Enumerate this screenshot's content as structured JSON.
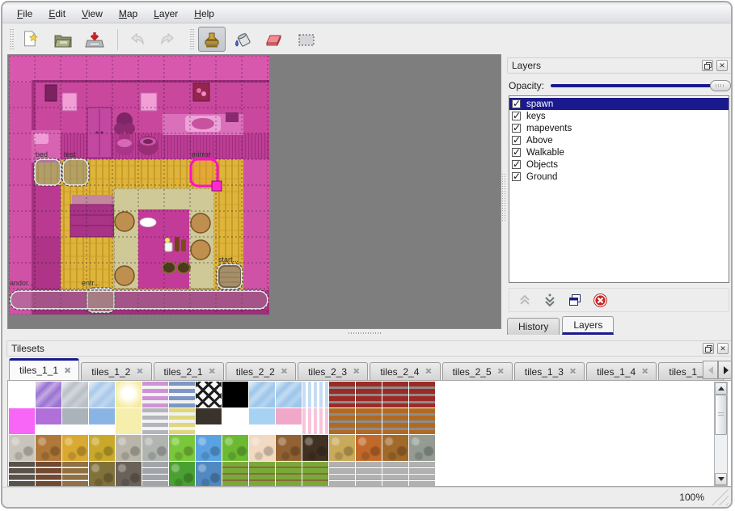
{
  "colors": {
    "accent": "#1a1a8e",
    "window_bg": "#ededed",
    "map_view_bg": "#7e7e7e",
    "map_base_magenta": "#d052a6",
    "map_floor_yellow": "#dfb43a",
    "map_carpet_tan": "#cfc998",
    "map_rug_magenta": "#c33b98",
    "selection_pink": "#ff10c8"
  },
  "menu": {
    "items": [
      "File",
      "Edit",
      "View",
      "Map",
      "Layer",
      "Help"
    ]
  },
  "toolbar": {
    "buttons": [
      {
        "name": "new-file",
        "disabled": false
      },
      {
        "name": "open-file",
        "disabled": false
      },
      {
        "name": "save-file",
        "disabled": false
      },
      {
        "name": "undo",
        "disabled": true
      },
      {
        "name": "redo",
        "disabled": true
      },
      {
        "name": "stamp-brush",
        "active": true
      },
      {
        "name": "bucket-fill",
        "active": false
      },
      {
        "name": "eraser",
        "active": false
      },
      {
        "name": "rectangular-select",
        "active": false
      }
    ]
  },
  "map": {
    "grid_size": 32,
    "objects": [
      {
        "label": "bed"
      },
      {
        "label": "test"
      },
      {
        "label": "mirror",
        "selected": true
      },
      {
        "label": "start..."
      },
      {
        "label": "entr..."
      },
      {
        "label": "andor..."
      }
    ]
  },
  "layers_panel": {
    "title": "Layers",
    "opacity_label": "Opacity:",
    "opacity_percent": 100,
    "layers": [
      {
        "name": "spawn",
        "visible": true,
        "selected": true
      },
      {
        "name": "keys",
        "visible": true,
        "selected": false
      },
      {
        "name": "mapevents",
        "visible": true,
        "selected": false
      },
      {
        "name": "Above",
        "visible": true,
        "selected": false
      },
      {
        "name": "Walkable",
        "visible": true,
        "selected": false
      },
      {
        "name": "Objects",
        "visible": true,
        "selected": false
      },
      {
        "name": "Ground",
        "visible": true,
        "selected": false
      }
    ],
    "tabs": [
      {
        "label": "History",
        "active": false
      },
      {
        "label": "Layers",
        "active": true
      }
    ]
  },
  "tilesets_panel": {
    "title": "Tilesets",
    "tabs": [
      {
        "label": "tiles_1_1",
        "active": true
      },
      {
        "label": "tiles_1_2",
        "active": false
      },
      {
        "label": "tiles_2_1",
        "active": false
      },
      {
        "label": "tiles_2_2",
        "active": false
      },
      {
        "label": "tiles_2_3",
        "active": false
      },
      {
        "label": "tiles_2_4",
        "active": false
      },
      {
        "label": "tiles_2_5",
        "active": false
      },
      {
        "label": "tiles_1_3",
        "active": false
      },
      {
        "label": "tiles_1_4",
        "active": false
      },
      {
        "label": "tiles_1_",
        "active": false
      }
    ],
    "tiles": [
      [
        {
          "c": "#ffffff",
          "p": "plain"
        },
        {
          "c": "#9b73d2",
          "p": "diag"
        },
        {
          "c": "#b9bfc7",
          "p": "diag"
        },
        {
          "c": "#a9c9e9",
          "p": "diag"
        },
        {
          "c": "#f5ec9b",
          "p": "glow"
        },
        {
          "c": "#cf93d3",
          "p": "hstripesw"
        },
        {
          "c": "#7d97c5",
          "p": "hstripesw"
        },
        {
          "c": "#1e1e1e",
          "p": "lattice"
        },
        {
          "c": "#000000",
          "p": "plain"
        },
        {
          "c": "#9cc6ea",
          "p": "diag"
        },
        {
          "c": "#9cc6ea",
          "p": "diag"
        },
        {
          "c": "#c6dcf4",
          "p": "vstripes"
        },
        {
          "c": "#9e2a26",
          "p": "hstripesd"
        },
        {
          "c": "#9e2a26",
          "p": "hstripesd"
        },
        {
          "c": "#9e2a26",
          "p": "hstripesd"
        },
        {
          "c": "#9e2a26",
          "p": "hstripesd"
        }
      ],
      [
        {
          "c": "#f766f7",
          "p": "plain"
        },
        {
          "c": "#b070d8",
          "p": "half"
        },
        {
          "c": "#aab2ba",
          "p": "half"
        },
        {
          "c": "#8ab4e4",
          "p": "half"
        },
        {
          "c": "#f6eeac",
          "p": "plain"
        },
        {
          "c": "#b4b4bc",
          "p": "hstripesw"
        },
        {
          "c": "#ded77e",
          "p": "hstripesw"
        },
        {
          "c": "#3a332b",
          "p": "half"
        },
        {
          "c": "#ffffff",
          "p": "plain"
        },
        {
          "c": "#a8d2f2",
          "p": "half"
        },
        {
          "c": "#f0a8c8",
          "p": "half"
        },
        {
          "c": "#f8c4da",
          "p": "vstripes"
        },
        {
          "c": "#b06a22",
          "p": "hstripesd"
        },
        {
          "c": "#b06a22",
          "p": "hstripesd"
        },
        {
          "c": "#b06a22",
          "p": "hstripesd"
        },
        {
          "c": "#b06a22",
          "p": "hstripesd"
        }
      ],
      [
        {
          "c": "#c9c5bd",
          "p": "stones"
        },
        {
          "c": "#b0793a",
          "p": "stones"
        },
        {
          "c": "#d9a931",
          "p": "stones"
        },
        {
          "c": "#c9a92b",
          "p": "stones"
        },
        {
          "c": "#b9b5a9",
          "p": "stones"
        },
        {
          "c": "#b1b5b1",
          "p": "stones"
        },
        {
          "c": "#7ac73a",
          "p": "stones"
        },
        {
          "c": "#5aa2e2",
          "p": "stones"
        },
        {
          "c": "#6cba32",
          "p": "stones"
        },
        {
          "c": "#f1dac1",
          "p": "stones"
        },
        {
          "c": "#926232",
          "p": "stones"
        },
        {
          "c": "#413122",
          "p": "stones"
        },
        {
          "c": "#c9a95a",
          "p": "stones"
        },
        {
          "c": "#c1692a",
          "p": "stones"
        },
        {
          "c": "#a1692a",
          "p": "stones"
        },
        {
          "c": "#939b93",
          "p": "stones"
        }
      ],
      [
        {
          "c": "#5a5249",
          "p": "stonerows"
        },
        {
          "c": "#724a31",
          "p": "stonerows"
        },
        {
          "c": "#917141",
          "p": "stonerows"
        },
        {
          "c": "#81713a",
          "p": "stones"
        },
        {
          "c": "#6a6259",
          "p": "stones"
        },
        {
          "c": "#a1a5a9",
          "p": "stonerows"
        },
        {
          "c": "#4aa131",
          "p": "stones"
        },
        {
          "c": "#5189c1",
          "p": "stones"
        },
        {
          "c": "#7aa93a",
          "p": "grassdirt"
        },
        {
          "c": "#7aa93a",
          "p": "grassdirt"
        },
        {
          "c": "#7aa93a",
          "p": "grassdirt"
        },
        {
          "c": "#7aa93a",
          "p": "grassdirt"
        },
        {
          "c": "#b1b1b1",
          "p": "stonerows"
        },
        {
          "c": "#b1b1b1",
          "p": "stonerows"
        },
        {
          "c": "#b1b1b1",
          "p": "stonerows"
        },
        {
          "c": "#b1b1b1",
          "p": "stonerows"
        }
      ]
    ]
  },
  "status_bar": {
    "zoom_level": "100%"
  }
}
